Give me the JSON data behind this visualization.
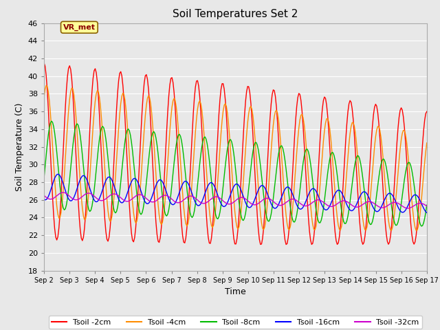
{
  "title": "Soil Temperatures Set 2",
  "xlabel": "Time",
  "ylabel": "Soil Temperature (C)",
  "ylim": [
    18,
    46
  ],
  "xlim": [
    0,
    15
  ],
  "yticks": [
    18,
    20,
    22,
    24,
    26,
    28,
    30,
    32,
    34,
    36,
    38,
    40,
    42,
    44,
    46
  ],
  "xtick_labels": [
    "Sep 2",
    "Sep 3",
    "Sep 4",
    "Sep 5",
    "Sep 6",
    "Sep 7",
    "Sep 8",
    "Sep 9",
    "Sep 10",
    "Sep 11",
    "Sep 12",
    "Sep 13",
    "Sep 14",
    "Sep 15",
    "Sep 16",
    "Sep 17"
  ],
  "annotation_text": "VR_met",
  "colors": {
    "Tsoil -2cm": "#ff0000",
    "Tsoil -4cm": "#ff8c00",
    "Tsoil -8cm": "#00bb00",
    "Tsoil -16cm": "#0000ff",
    "Tsoil -32cm": "#cc00cc"
  },
  "background_color": "#e8e8e8",
  "grid_color": "#ffffff"
}
